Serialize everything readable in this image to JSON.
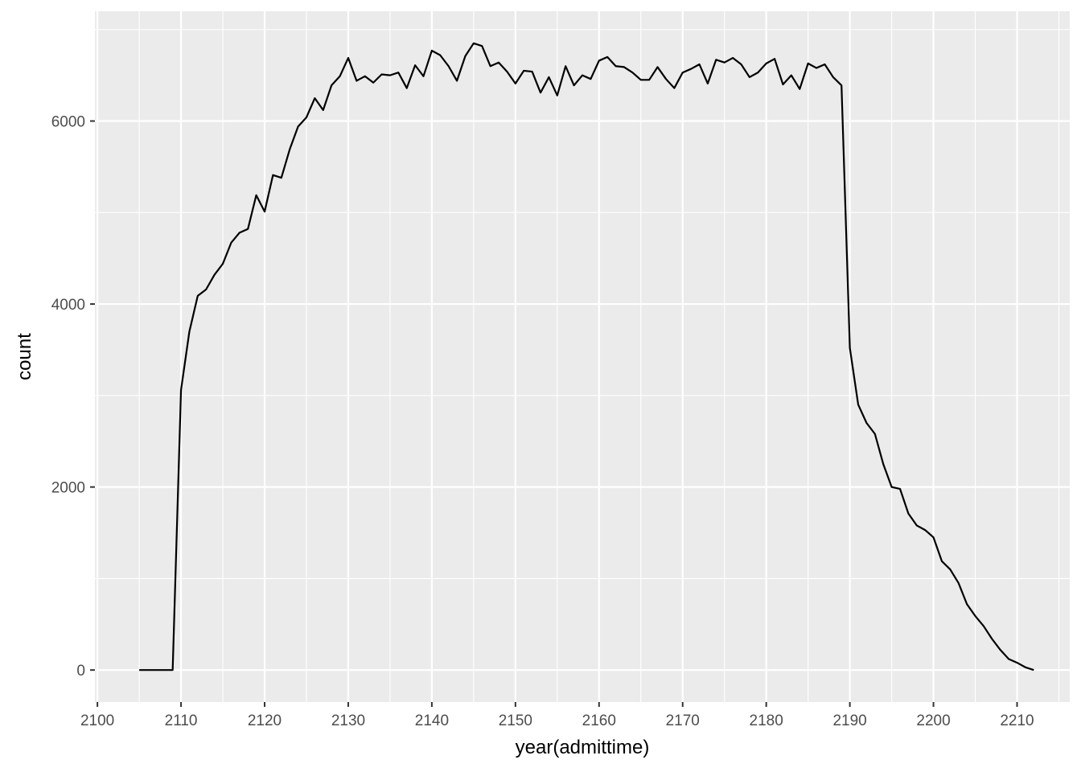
{
  "chart_data": {
    "type": "line",
    "title": "",
    "xlabel": "year(admittime)",
    "ylabel": "count",
    "xlim": [
      2099.7,
      2216.3
    ],
    "ylim": [
      -350,
      7200
    ],
    "x_ticks": [
      2100,
      2110,
      2120,
      2130,
      2140,
      2150,
      2160,
      2170,
      2180,
      2190,
      2200,
      2210
    ],
    "x_tick_labels": [
      "2100",
      "2110",
      "2120",
      "2130",
      "2140",
      "2150",
      "2160",
      "2170",
      "2180",
      "2190",
      "2200",
      "2210"
    ],
    "y_ticks": [
      0,
      2000,
      4000,
      6000
    ],
    "y_tick_labels": [
      "0",
      "2000",
      "4000",
      "6000"
    ],
    "grid": true,
    "background": "#ebebeb",
    "line_color": "#000000",
    "series": [
      {
        "x": [
          2105,
          2106,
          2107,
          2108,
          2109,
          2110,
          2111,
          2112,
          2113,
          2114,
          2115,
          2116,
          2117,
          2118,
          2119,
          2120,
          2121,
          2122,
          2123,
          2124,
          2125,
          2126,
          2127,
          2128,
          2129,
          2130,
          2131,
          2132,
          2133,
          2134,
          2135,
          2136,
          2137,
          2138,
          2139,
          2140,
          2141,
          2142,
          2143,
          2144,
          2145,
          2146,
          2147,
          2148,
          2149,
          2150,
          2151,
          2152,
          2153,
          2154,
          2155,
          2156,
          2157,
          2158,
          2159,
          2160,
          2161,
          2162,
          2163,
          2164,
          2165,
          2166,
          2167,
          2168,
          2169,
          2170,
          2171,
          2172,
          2173,
          2174,
          2175,
          2176,
          2177,
          2178,
          2179,
          2180,
          2181,
          2182,
          2183,
          2184,
          2185,
          2186,
          2187,
          2188,
          2189,
          2190,
          2191,
          2192,
          2193,
          2194,
          2195,
          2196,
          2197,
          2198,
          2199,
          2200,
          2201,
          2202,
          2203,
          2204,
          2205,
          2206,
          2207,
          2208,
          2209,
          2210,
          2211,
          2212
        ],
        "y": [
          0,
          0,
          0,
          0,
          0,
          3060,
          3700,
          4090,
          4160,
          4320,
          4440,
          4670,
          4780,
          4820,
          5190,
          5010,
          5410,
          5380,
          5690,
          5940,
          6040,
          6250,
          6120,
          6390,
          6490,
          6690,
          6440,
          6490,
          6420,
          6510,
          6500,
          6530,
          6360,
          6610,
          6490,
          6770,
          6720,
          6600,
          6440,
          6710,
          6850,
          6820,
          6600,
          6640,
          6540,
          6410,
          6550,
          6540,
          6310,
          6480,
          6280,
          6600,
          6390,
          6500,
          6460,
          6660,
          6700,
          6600,
          6590,
          6530,
          6450,
          6450,
          6590,
          6460,
          6360,
          6530,
          6570,
          6620,
          6410,
          6670,
          6640,
          6690,
          6620,
          6480,
          6530,
          6630,
          6680,
          6400,
          6500,
          6350,
          6630,
          6580,
          6620,
          6480,
          6390,
          3520,
          2900,
          2700,
          2580,
          2250,
          2000,
          1980,
          1710,
          1580,
          1530,
          1450,
          1190,
          1100,
          950,
          720,
          590,
          480,
          340,
          220,
          120,
          80,
          30,
          0
        ]
      }
    ]
  }
}
